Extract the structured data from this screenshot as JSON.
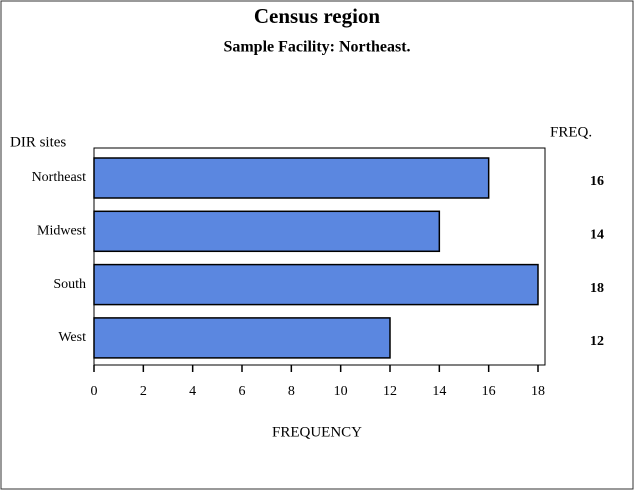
{
  "chart_data": {
    "type": "bar",
    "orientation": "horizontal",
    "title": "Census region",
    "subtitle": "Sample Facility: Northeast.",
    "ylabel": "DIR sites",
    "xlabel": "FREQUENCY",
    "value_header": "FREQ.",
    "categories": [
      "Northeast",
      "Midwest",
      "South",
      "West"
    ],
    "values": [
      16,
      14,
      18,
      12
    ],
    "color": "#5b87e0",
    "xlim": [
      0,
      18
    ],
    "xticks": [
      0,
      2,
      4,
      6,
      8,
      10,
      12,
      14,
      16,
      18
    ]
  }
}
